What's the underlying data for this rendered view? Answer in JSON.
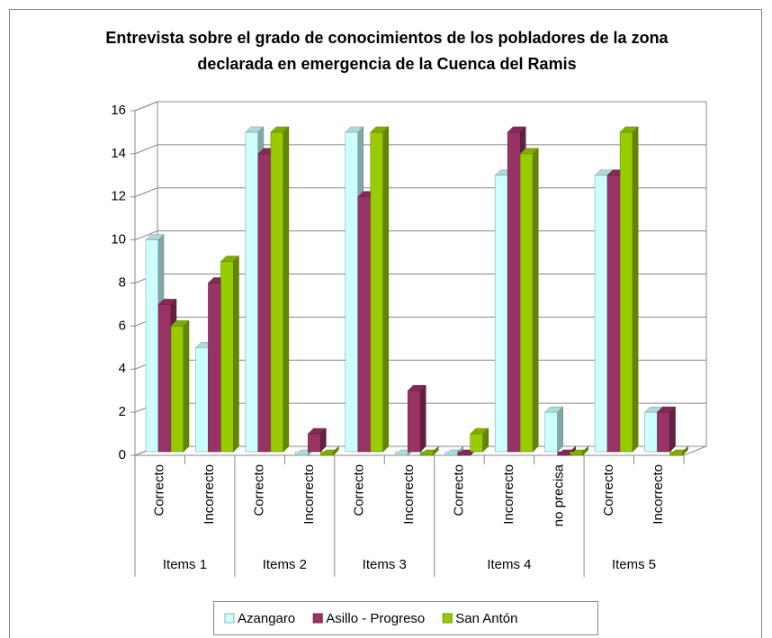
{
  "chart_data": {
    "type": "bar3d",
    "title": "Entrevista sobre el grado de conocimientos de los pobladores de la zona declarada en emergencia de la Cuenca del Ramis",
    "groups": [
      {
        "label": "Items 1",
        "categories": [
          "Correcto",
          "Incorrecto"
        ]
      },
      {
        "label": "Items 2",
        "categories": [
          "Correcto",
          "Incorrecto"
        ]
      },
      {
        "label": "Items 3",
        "categories": [
          "Correcto",
          "Incorrecto"
        ]
      },
      {
        "label": "Items 4",
        "categories": [
          "Correcto",
          "Incorrecto",
          "no precisa"
        ]
      },
      {
        "label": "Items 5",
        "categories": [
          "Correcto",
          "Incorrecto"
        ]
      }
    ],
    "series": [
      {
        "name": "Azangaro",
        "color": "#ccffff",
        "values": [
          10,
          5,
          15,
          0,
          15,
          0,
          0,
          13,
          2,
          13,
          2
        ]
      },
      {
        "name": "Asillo - Progreso",
        "color": "#993366",
        "values": [
          7,
          8,
          14,
          1,
          12,
          3,
          0,
          15,
          0,
          13,
          2
        ]
      },
      {
        "name": "San Antón",
        "color": "#99cc00",
        "values": [
          6,
          9,
          15,
          0,
          15,
          0,
          1,
          14,
          0,
          15,
          0
        ]
      }
    ],
    "ylim": [
      0,
      16
    ],
    "yticks": [
      0,
      2,
      4,
      6,
      8,
      10,
      12,
      14,
      16
    ],
    "grid": true,
    "legend": "bottom"
  }
}
